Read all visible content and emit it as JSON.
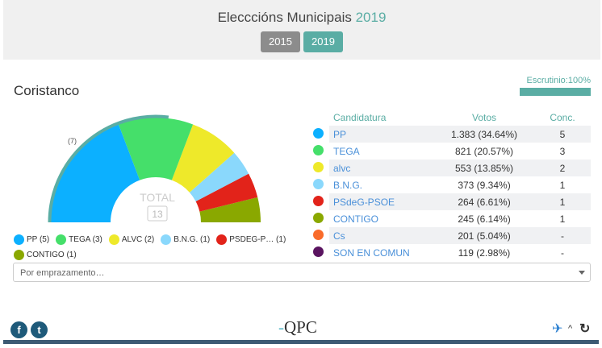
{
  "header": {
    "title": "Elecccións Municipais",
    "title_text": "Elecccións Municipais",
    "year": "2019",
    "years": [
      {
        "label": "2015",
        "color": "#8c8c8c"
      },
      {
        "label": "2019",
        "color": "#5aada4"
      }
    ]
  },
  "municipality": "Coristanco",
  "scrutiny": {
    "label": "Escrutinio:100%",
    "percent": 100
  },
  "hemicycle": {
    "total_label": "TOTAL",
    "total": "13",
    "majority_label": "(7)",
    "majority": 7,
    "accent": "#5aada4"
  },
  "parties": [
    {
      "name": "PP",
      "legend": "PP (5)",
      "votes": "1.383 (34.64%)",
      "seats": "5",
      "seat_count": 5,
      "color": "#0cb0ff"
    },
    {
      "name": "TEGA",
      "legend": "TEGA (3)",
      "votes": "821 (20.57%)",
      "seats": "3",
      "seat_count": 3,
      "color": "#45df6a"
    },
    {
      "name": "alvc",
      "legend": "ALVC (2)",
      "votes": "553 (13.85%)",
      "seats": "2",
      "seat_count": 2,
      "color": "#eee92a"
    },
    {
      "name": "B.N.G.",
      "legend": "B.N.G. (1)",
      "votes": "373 (9.34%)",
      "seats": "1",
      "seat_count": 1,
      "color": "#8ad8fc"
    },
    {
      "name": "PSdeG-PSOE",
      "legend": "PSDEG-P…  (1)",
      "votes": "264 (6.61%)",
      "seats": "1",
      "seat_count": 1,
      "color": "#e2231a"
    },
    {
      "name": "CONTIGO",
      "legend": "CONTIGO (1)",
      "votes": "245 (6.14%)",
      "seats": "1",
      "seat_count": 1,
      "color": "#8aa800"
    },
    {
      "name": "Cs",
      "votes": "201 (5.04%)",
      "seats": "-",
      "seat_count": 0,
      "color": "#f96b2a"
    },
    {
      "name": "SON EN COMUN",
      "votes": "119 (2.98%)",
      "seats": "-",
      "seat_count": 0,
      "color": "#5a1460"
    }
  ],
  "table": {
    "col_party": "Candidatura",
    "col_votes": "Votos",
    "col_seats": "Conc."
  },
  "select": {
    "placeholder": "Por emprazamento…"
  },
  "footer": {
    "logo": "QPC",
    "icons": [
      "facebook-icon",
      "twitter-icon",
      "galicia-flag-icon",
      "chevron-up-icon",
      "refresh-icon"
    ]
  }
}
